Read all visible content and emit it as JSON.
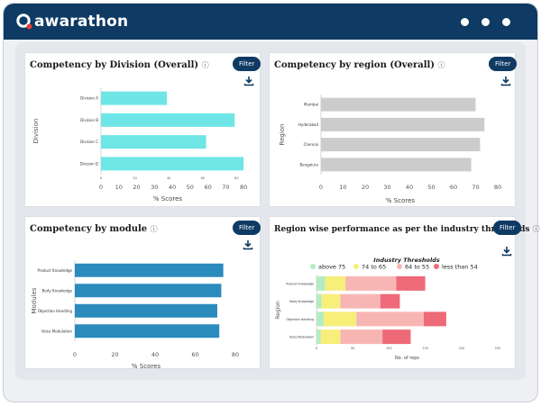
{
  "app": {
    "brand": "awarathon"
  },
  "panels": [
    {
      "title": "Competency by Division (Overall)",
      "filter_label": "Filter",
      "chart_data": {
        "type": "bar",
        "orientation": "horizontal",
        "title": "Competency by Division (Overall)",
        "categories": [
          "Division A",
          "Division B",
          "Division C",
          "Division D"
        ],
        "values": [
          37,
          75,
          59,
          80
        ],
        "xlabel": "% Scores",
        "ylabel": "Division",
        "xlim": [
          0,
          85
        ],
        "xticks": [
          0,
          10,
          20,
          30,
          40,
          50,
          60,
          70,
          80
        ],
        "inner_ticks": [
          "0",
          "20",
          "40",
          "60",
          "80",
          "100"
        ],
        "color": "#6ee6e6"
      }
    },
    {
      "title": "Competency by region (Overall)",
      "filter_label": "Filter",
      "chart_data": {
        "type": "bar",
        "orientation": "horizontal",
        "title": "Competency by region (Overall)",
        "categories": [
          "Mumbai",
          "Hyderabad",
          "Chennai",
          "Bengaluru"
        ],
        "values": [
          70,
          74,
          72,
          68
        ],
        "xlabel": "% Scores",
        "ylabel": "Region",
        "xlim": [
          0,
          80
        ],
        "xticks": [
          0,
          10,
          20,
          30,
          40,
          50,
          60,
          70,
          80
        ],
        "color": "#cccccc"
      }
    },
    {
      "title": "Competency by module",
      "filter_label": "Filter",
      "chart_data": {
        "type": "bar",
        "orientation": "horizontal",
        "title": "Competency by module",
        "categories": [
          "Product Knowledge",
          "Body Knowledge",
          "Objection Handling",
          "Voice Modulation"
        ],
        "values": [
          74,
          73,
          71,
          72
        ],
        "xlabel": "% Scores",
        "ylabel": "Modules",
        "xlim": [
          0,
          80
        ],
        "xticks": [
          0,
          20,
          40,
          60,
          80
        ],
        "color": "#2b8bbd"
      }
    },
    {
      "title": "Region wise performance as per the industry thresholds",
      "filter_label": "Filter",
      "chart_data": {
        "type": "bar",
        "orientation": "horizontal",
        "stacked": true,
        "title": "Region wise performance as per the industry thresholds",
        "legend_title": "Industry Thresholds",
        "categories": [
          "Product Knowledge",
          "Body Knowledge",
          "Objection Handling",
          "Voice Modulation"
        ],
        "series": [
          {
            "name": "above 75",
            "color": "#b3ecc1",
            "values": [
              12,
              7,
              10,
              6
            ]
          },
          {
            "name": "74 to 65",
            "color": "#f7ef7a",
            "values": [
              28,
              26,
              45,
              27
            ]
          },
          {
            "name": "64 to 55",
            "color": "#f7b6b3",
            "values": [
              70,
              55,
              93,
              58
            ]
          },
          {
            "name": "less than 54",
            "color": "#ee6a78",
            "values": [
              40,
              27,
              31,
              39
            ]
          }
        ],
        "xlabel": "No. of reps",
        "ylabel": "Region",
        "xlim": [
          0,
          250
        ],
        "xticks": [
          0,
          50,
          100,
          150,
          200,
          250
        ]
      }
    }
  ]
}
